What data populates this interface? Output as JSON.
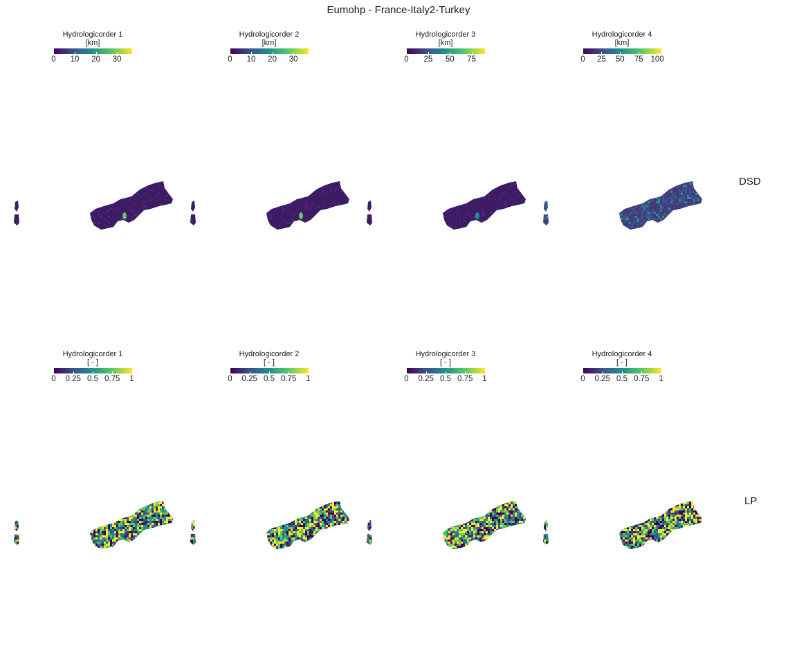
{
  "title": "Eumohp - France-Italy2-Turkey",
  "colors": {
    "viridis": [
      "#440154",
      "#3b528b",
      "#21918c",
      "#5ec962",
      "#fde725"
    ],
    "land_dark": "#3e1c63"
  },
  "rows": [
    {
      "label": "DSD",
      "legends": [
        {
          "title": "Hydrologicorder 1",
          "unit": "[km]",
          "ticks": [
            "0",
            "10",
            "20",
            "30"
          ],
          "max": 37
        },
        {
          "title": "Hydrologicorder 2",
          "unit": "[km]",
          "ticks": [
            "0",
            "10",
            "20",
            "30"
          ],
          "max": 37
        },
        {
          "title": "Hydrologicorder 3",
          "unit": "[km]",
          "ticks": [
            "0",
            "25",
            "50",
            "75"
          ],
          "max": 90
        },
        {
          "title": "Hydrologicorder 4",
          "unit": "[km]",
          "ticks": [
            "0",
            "25",
            "50",
            "75",
            "100"
          ],
          "max": 105
        }
      ]
    },
    {
      "label": "LP",
      "legends": [
        {
          "title": "Hydrologicorder 1",
          "unit": "[ - ]",
          "ticks": [
            "0",
            "0.25",
            "0.5",
            "0.75",
            "1"
          ],
          "max": 1
        },
        {
          "title": "Hydrologicorder 2",
          "unit": "[ - ]",
          "ticks": [
            "0",
            "0.25",
            "0.5",
            "0.75",
            "1"
          ],
          "max": 1
        },
        {
          "title": "Hydrologicorder 3",
          "unit": "[ - ]",
          "ticks": [
            "0",
            "0.25",
            "0.5",
            "0.75",
            "1"
          ],
          "max": 1
        },
        {
          "title": "Hydrologicorder 4",
          "unit": "[ - ]",
          "ticks": [
            "0",
            "0.25",
            "0.5",
            "0.75",
            "1"
          ],
          "max": 1
        }
      ]
    }
  ]
}
